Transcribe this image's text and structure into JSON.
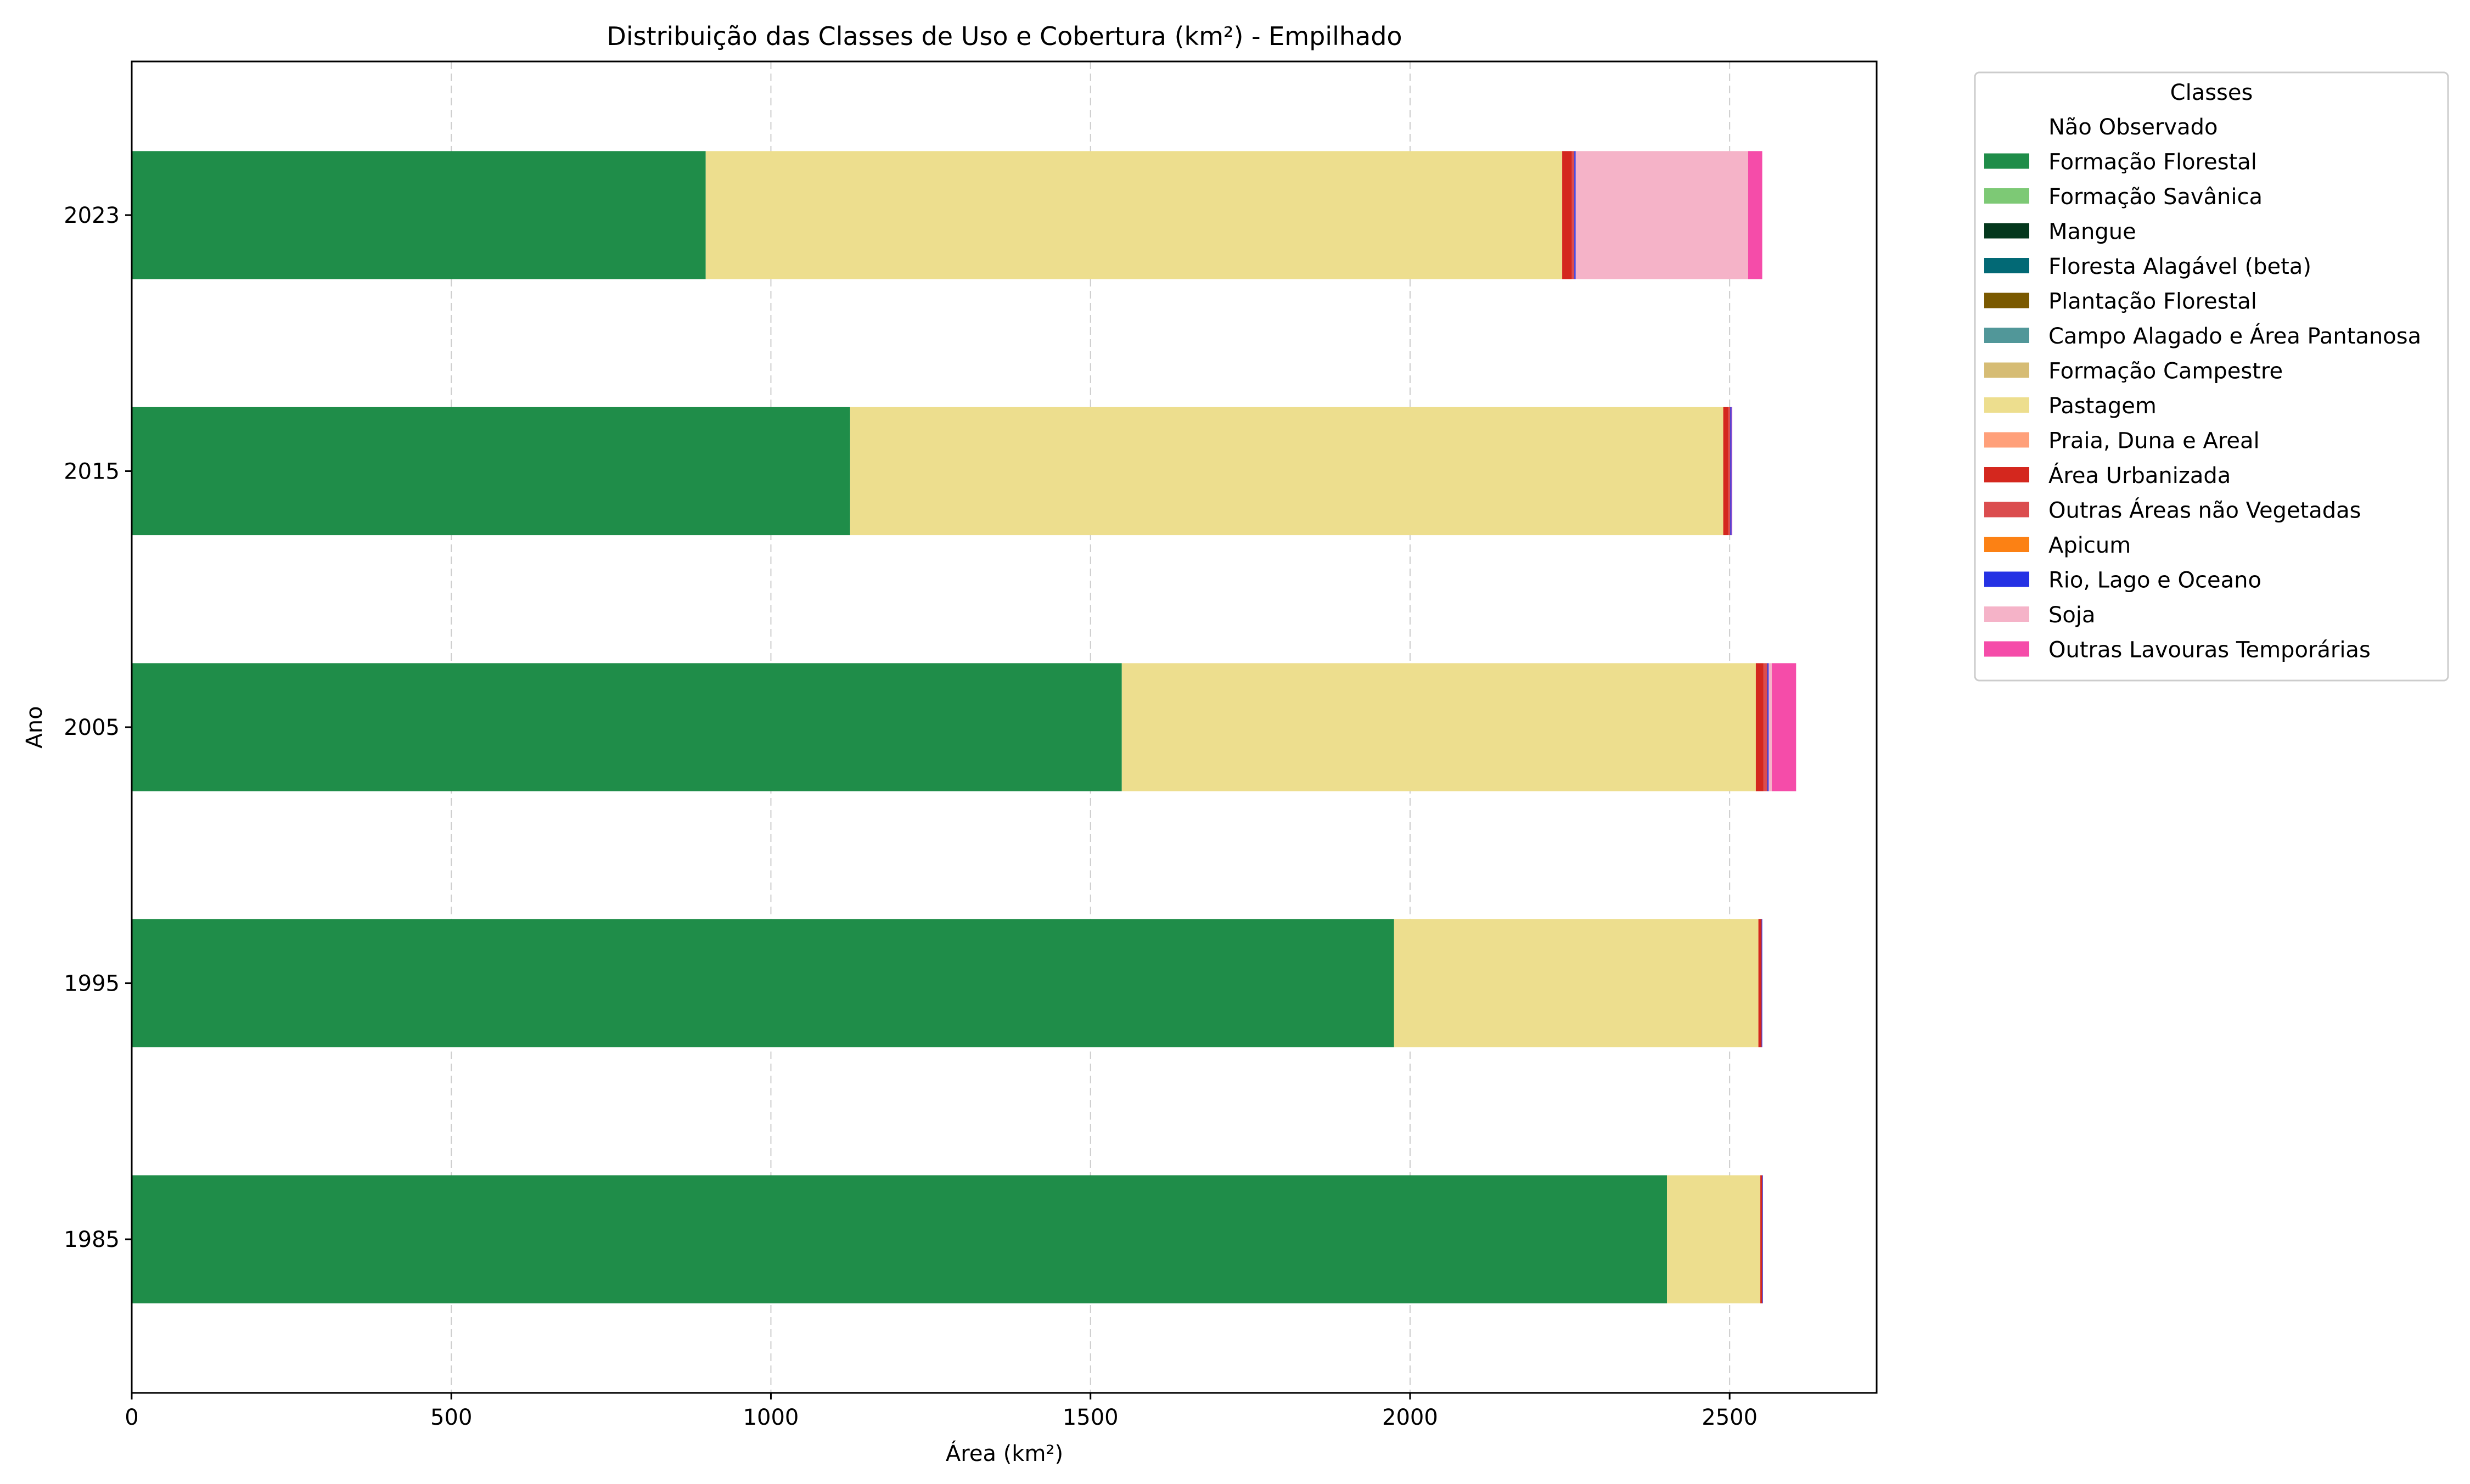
{
  "chart_data": {
    "type": "bar",
    "orientation": "horizontal",
    "stacked": true,
    "title": "Distribuição das Classes de Uso e Cobertura (km²) - Empilhado",
    "xlabel": "Área (km²)",
    "ylabel": "Ano",
    "xlim": [
      0,
      2730
    ],
    "xticks": [
      0,
      500,
      1000,
      1500,
      2000,
      2500
    ],
    "grid": "x-dashed",
    "legend_title": "Classes",
    "legend_position": "outside-right-top",
    "categories": [
      "1985",
      "1995",
      "2005",
      "2015",
      "2023"
    ],
    "series": [
      {
        "name": "Não Observado",
        "color": "#ffffff",
        "values": [
          0,
          0,
          0,
          0,
          0
        ]
      },
      {
        "name": "Formação Florestal",
        "color": "#1f8d49",
        "values": [
          2402,
          1975,
          1549,
          1124,
          898
        ]
      },
      {
        "name": "Formação Savânica",
        "color": "#7dc975",
        "values": [
          0,
          0,
          0,
          0,
          0
        ]
      },
      {
        "name": "Mangue",
        "color": "#04381d",
        "values": [
          0,
          0,
          0,
          0,
          0
        ]
      },
      {
        "name": "Floresta Alagável (beta)",
        "color": "#026975",
        "values": [
          0,
          0,
          0,
          0,
          0
        ]
      },
      {
        "name": "Plantação Florestal",
        "color": "#7a5900",
        "values": [
          0,
          0,
          0,
          0,
          0
        ]
      },
      {
        "name": "Campo Alagado e Área Pantanosa",
        "color": "#519799",
        "values": [
          0,
          0,
          0,
          0,
          0
        ]
      },
      {
        "name": "Formação Campestre",
        "color": "#d6bc74",
        "values": [
          0,
          0,
          0,
          0,
          0
        ]
      },
      {
        "name": "Pastagem",
        "color": "#edde8e",
        "values": [
          146,
          570,
          992,
          1366,
          1340
        ]
      },
      {
        "name": "Praia, Duna e Areal",
        "color": "#ffa07a",
        "values": [
          0,
          0,
          0,
          0,
          0
        ]
      },
      {
        "name": "Área Urbanizada",
        "color": "#d4271e",
        "values": [
          3,
          5,
          12,
          8,
          15
        ]
      },
      {
        "name": "Outras Áreas não Vegetadas",
        "color": "#db4d4f",
        "values": [
          0,
          0,
          6,
          3,
          4
        ]
      },
      {
        "name": "Apicum",
        "color": "#fc8114",
        "values": [
          0,
          0,
          0,
          0,
          0
        ]
      },
      {
        "name": "Rio, Lago e Oceano",
        "color": "#2532e4",
        "values": [
          1,
          1,
          2,
          2,
          2
        ]
      },
      {
        "name": "Soja",
        "color": "#f5b3c8",
        "values": [
          0,
          0,
          5,
          0,
          270
        ]
      },
      {
        "name": "Outras Lavouras Temporárias",
        "color": "#f54ca9",
        "values": [
          0,
          0,
          38,
          1,
          22
        ]
      }
    ]
  }
}
